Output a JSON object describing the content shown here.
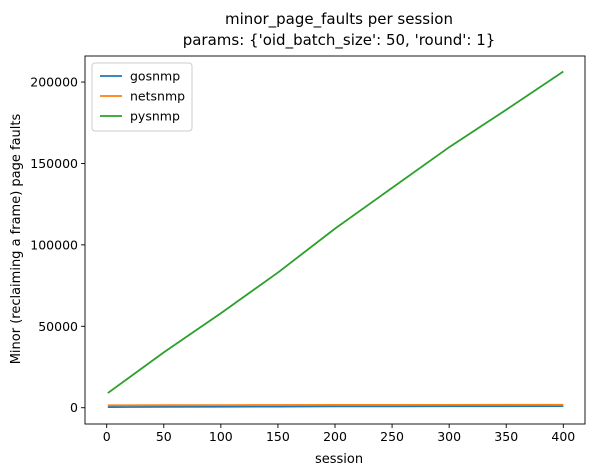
{
  "chart_data": {
    "type": "line",
    "title": "minor_page_faults per session",
    "subtitle": "params: {'oid_batch_size': 50, 'round': 1}",
    "xlabel": "session",
    "ylabel": "Minor (reclaiming a frame) page faults",
    "xlim": [
      -19,
      419
    ],
    "ylim": [
      -10000,
      216000
    ],
    "xticks": [
      0,
      50,
      100,
      150,
      200,
      250,
      300,
      350,
      400
    ],
    "yticks": [
      0,
      50000,
      100000,
      150000,
      200000
    ],
    "grid": false,
    "legend_position": "top-left",
    "series": [
      {
        "name": "gosnmp",
        "color": "#1f77b4",
        "x": [
          1,
          50,
          100,
          150,
          200,
          250,
          300,
          350,
          400
        ],
        "y": [
          400,
          500,
          600,
          700,
          800,
          850,
          900,
          950,
          1000
        ]
      },
      {
        "name": "netsnmp",
        "color": "#ff7f0e",
        "x": [
          1,
          50,
          100,
          150,
          200,
          250,
          300,
          350,
          400
        ],
        "y": [
          1500,
          1550,
          1600,
          1650,
          1700,
          1720,
          1750,
          1780,
          1800
        ]
      },
      {
        "name": "pysnmp",
        "color": "#2ca02c",
        "x": [
          1,
          50,
          100,
          150,
          200,
          250,
          300,
          350,
          400
        ],
        "y": [
          9000,
          34000,
          58000,
          83000,
          110000,
          135000,
          160000,
          183000,
          206500
        ]
      }
    ]
  }
}
